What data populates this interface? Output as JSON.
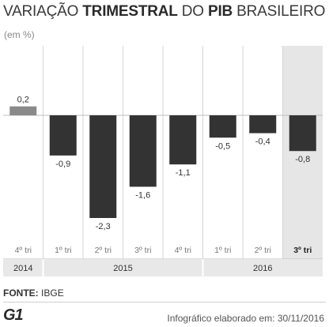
{
  "header": {
    "title_part1": "VARIAÇÃO ",
    "title_part2": "TRIMESTRAL",
    "title_part3": " DO ",
    "title_part4": "PIB",
    "title_part5": " BRASILEIRO",
    "unit": "(em %)"
  },
  "chart_data": {
    "type": "bar",
    "categories": [
      "4º tri",
      "1º tri",
      "2º tri",
      "3º tri",
      "4º tri",
      "1º tri",
      "2º tri",
      "3º tri"
    ],
    "years": [
      {
        "label": "2014",
        "span": 1
      },
      {
        "label": "2015",
        "span": 4
      },
      {
        "label": "2016",
        "span": 3
      }
    ],
    "values": [
      0.2,
      -0.9,
      -2.3,
      -1.6,
      -1.1,
      -0.5,
      -0.4,
      -0.8
    ],
    "value_labels": [
      "0,2",
      "-0,9",
      "-2,3",
      "-1,6",
      "-1,1",
      "-0,5",
      "-0,4",
      "-0,8"
    ],
    "highlight_index": 7,
    "ylim": [
      -2.5,
      0.5
    ],
    "colors": {
      "positive": "#8a8a8a",
      "negative": "#333333",
      "highlight_bg": "#e6e6e6",
      "grid": "#d6d6d6"
    }
  },
  "footer": {
    "source_label": "FONTE:",
    "source_value": "IBGE",
    "logo": "G1",
    "credit": "Infográfico elaborado em: 30/11/2016"
  }
}
